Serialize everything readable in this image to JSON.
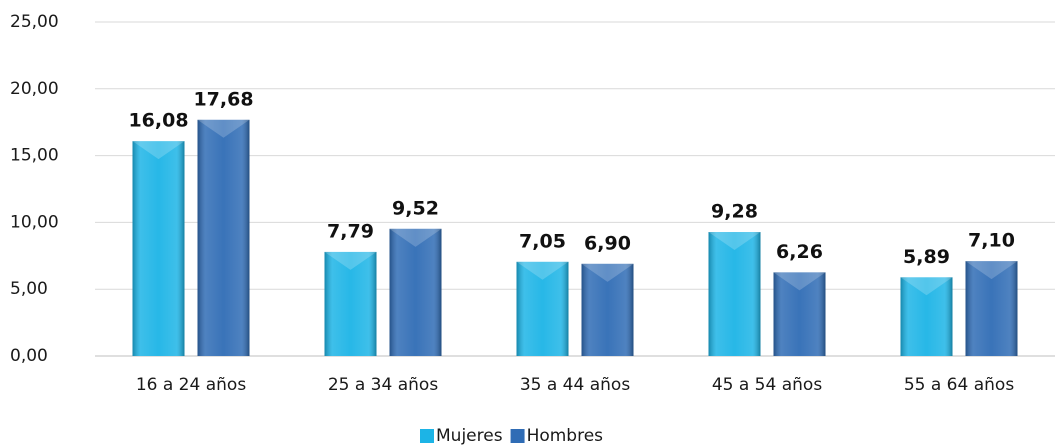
{
  "chart_data": {
    "type": "bar",
    "categories": [
      "16 a 24 años",
      "25 a 34 años",
      "35 a 44 años",
      "45 a 54 años",
      "55 a 64 años"
    ],
    "series": [
      {
        "name": "Mujeres",
        "color": "#1cb4e6",
        "values": [
          16.08,
          7.79,
          7.05,
          9.28,
          5.89
        ],
        "value_labels": [
          "16,08",
          "7,79",
          "7,05",
          "9,28",
          "5,89"
        ]
      },
      {
        "name": "Hombres",
        "color": "#2f6cb5",
        "values": [
          17.68,
          9.52,
          6.9,
          6.26,
          7.1
        ],
        "value_labels": [
          "17,68",
          "9,52",
          "6,90",
          "6,26",
          "7,10"
        ]
      }
    ],
    "ylim": [
      0,
      25
    ],
    "yticks": [
      {
        "value": 0,
        "label": "0,00"
      },
      {
        "value": 5,
        "label": "5,00"
      },
      {
        "value": 10,
        "label": "10,00"
      },
      {
        "value": 15,
        "label": "15,00"
      },
      {
        "value": 20,
        "label": "20,00"
      },
      {
        "value": 25,
        "label": "25,00"
      }
    ],
    "grid": true,
    "legend": "bottom"
  }
}
